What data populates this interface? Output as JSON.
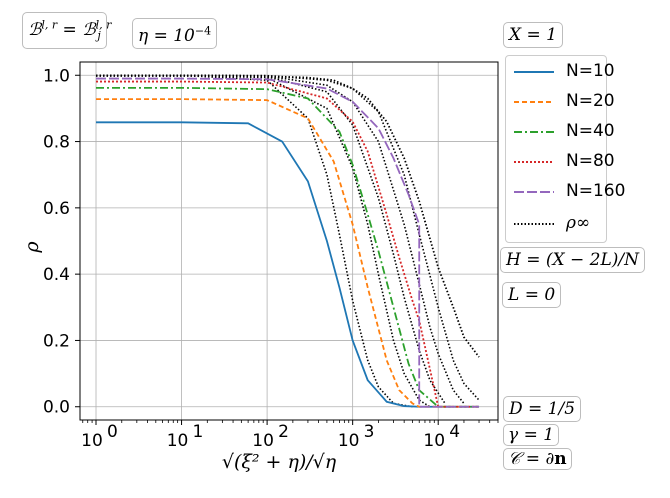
{
  "chart_data": {
    "type": "line",
    "xscale": "log",
    "xlim": [
      0.65,
      50000
    ],
    "ylim": [
      -0.04,
      1.04
    ],
    "xlabel": "√(ξ² + η)/√η",
    "ylabel": "ρ",
    "x_ticks": [
      {
        "value": 1,
        "base": "10",
        "exp": "0"
      },
      {
        "value": 10,
        "base": "10",
        "exp": "1"
      },
      {
        "value": 100,
        "base": "10",
        "exp": "2"
      },
      {
        "value": 1000,
        "base": "10",
        "exp": "3"
      },
      {
        "value": 10000,
        "base": "10",
        "exp": "4"
      }
    ],
    "y_ticks": [
      "0.0",
      "0.2",
      "0.4",
      "0.6",
      "0.8",
      "1.0"
    ],
    "grid": true,
    "legend_position": "right, outside plot",
    "series": [
      {
        "name": "N=10",
        "color": "#1f77b4",
        "dash": "solid",
        "x": [
          1,
          10,
          60,
          150,
          300,
          500,
          700,
          1000,
          1500,
          2500,
          4000,
          6000,
          10000,
          30000
        ],
        "y": [
          0.858,
          0.858,
          0.855,
          0.8,
          0.68,
          0.5,
          0.36,
          0.2,
          0.08,
          0.015,
          0.002,
          0.0,
          0.0,
          0.0
        ]
      },
      {
        "name": "N=20",
        "color": "#ff7f0e",
        "dash": "5,3",
        "x": [
          1,
          10,
          100,
          300,
          600,
          1000,
          1500,
          2500,
          3500,
          5000,
          6000,
          10000,
          30000
        ],
        "y": [
          0.928,
          0.928,
          0.925,
          0.87,
          0.74,
          0.55,
          0.36,
          0.14,
          0.05,
          0.01,
          0.0,
          0.0,
          0.0
        ]
      },
      {
        "name": "N=40",
        "color": "#2ca02c",
        "dash": "8,3,2,3",
        "x": [
          1,
          10,
          100,
          300,
          700,
          1000,
          1500,
          2000,
          3000,
          4500,
          6000,
          10000,
          30000
        ],
        "y": [
          0.962,
          0.962,
          0.958,
          0.93,
          0.83,
          0.73,
          0.58,
          0.47,
          0.3,
          0.13,
          0.05,
          0.0,
          0.0
        ]
      },
      {
        "name": "N=80",
        "color": "#d62728",
        "dash": "2,2",
        "x": [
          1,
          10,
          100,
          500,
          1000,
          1500,
          2500,
          3500,
          5000,
          6000,
          10000,
          30000
        ],
        "y": [
          0.981,
          0.981,
          0.978,
          0.93,
          0.86,
          0.77,
          0.58,
          0.45,
          0.32,
          0.26,
          0.0,
          0.0
        ]
      },
      {
        "name": "N=160",
        "color": "#9467bd",
        "dash": "10,3",
        "x": [
          1,
          10,
          100,
          500,
          1000,
          2000,
          3000,
          4500,
          6000,
          6000,
          10000,
          30000
        ],
        "y": [
          0.99,
          0.99,
          0.988,
          0.96,
          0.92,
          0.84,
          0.75,
          0.64,
          0.55,
          0.0,
          0.0,
          0.0
        ]
      },
      {
        "name": "ρ∞",
        "color": "#000000",
        "dash": "1.5,2",
        "x": [
          1,
          10,
          100,
          300,
          600,
          1000,
          1500,
          2500,
          4000,
          6000,
          10000,
          15000,
          20000,
          30000
        ],
        "y": [
          0.998,
          0.998,
          0.997,
          0.993,
          0.985,
          0.96,
          0.93,
          0.86,
          0.75,
          0.62,
          0.42,
          0.3,
          0.21,
          0.15
        ]
      }
    ],
    "extra_black_dotted": [
      {
        "x": [
          1,
          10,
          100,
          300,
          500,
          700,
          1000,
          1500,
          2000,
          3000,
          5000
        ],
        "y": [
          1.0,
          1.0,
          0.985,
          0.87,
          0.7,
          0.52,
          0.32,
          0.14,
          0.06,
          0.01,
          0.0
        ]
      },
      {
        "x": [
          1,
          10,
          100,
          500,
          1000,
          1500,
          2000,
          3000,
          4000,
          6000,
          8000
        ],
        "y": [
          1.0,
          1.0,
          0.993,
          0.9,
          0.72,
          0.55,
          0.4,
          0.2,
          0.1,
          0.02,
          0.0
        ]
      },
      {
        "x": [
          1,
          10,
          100,
          500,
          1000,
          2000,
          3000,
          4000,
          6000,
          8000,
          12000
        ],
        "y": [
          1.0,
          1.0,
          0.996,
          0.95,
          0.85,
          0.63,
          0.46,
          0.33,
          0.17,
          0.08,
          0.01
        ]
      },
      {
        "x": [
          1,
          10,
          100,
          500,
          1000,
          2000,
          4000,
          6000,
          8000,
          10000,
          15000,
          20000
        ],
        "y": [
          1.0,
          1.0,
          0.998,
          0.97,
          0.92,
          0.8,
          0.55,
          0.37,
          0.24,
          0.16,
          0.05,
          0.01
        ]
      },
      {
        "x": [
          1,
          10,
          100,
          500,
          1000,
          2000,
          4000,
          6000,
          10000,
          15000,
          20000,
          30000
        ],
        "y": [
          1.0,
          1.0,
          0.999,
          0.985,
          0.96,
          0.89,
          0.7,
          0.52,
          0.3,
          0.14,
          0.07,
          0.02
        ]
      }
    ]
  },
  "annotations": {
    "b_label": "𝓑^{l,r} = 𝓑_j^{l,r}",
    "eta_label": "η = 10⁻⁴",
    "x_label": "X = 1",
    "h_label": "H = (X − 2L)/N",
    "l_label": "L = 0",
    "d_label": "D = 1/5",
    "gamma_label": "γ = 1",
    "c_label": "𝒞 = ∂𝐧"
  },
  "legend": [
    "N=10",
    "N=20",
    "N=40",
    "N=80",
    "N=160",
    "ρ∞"
  ]
}
